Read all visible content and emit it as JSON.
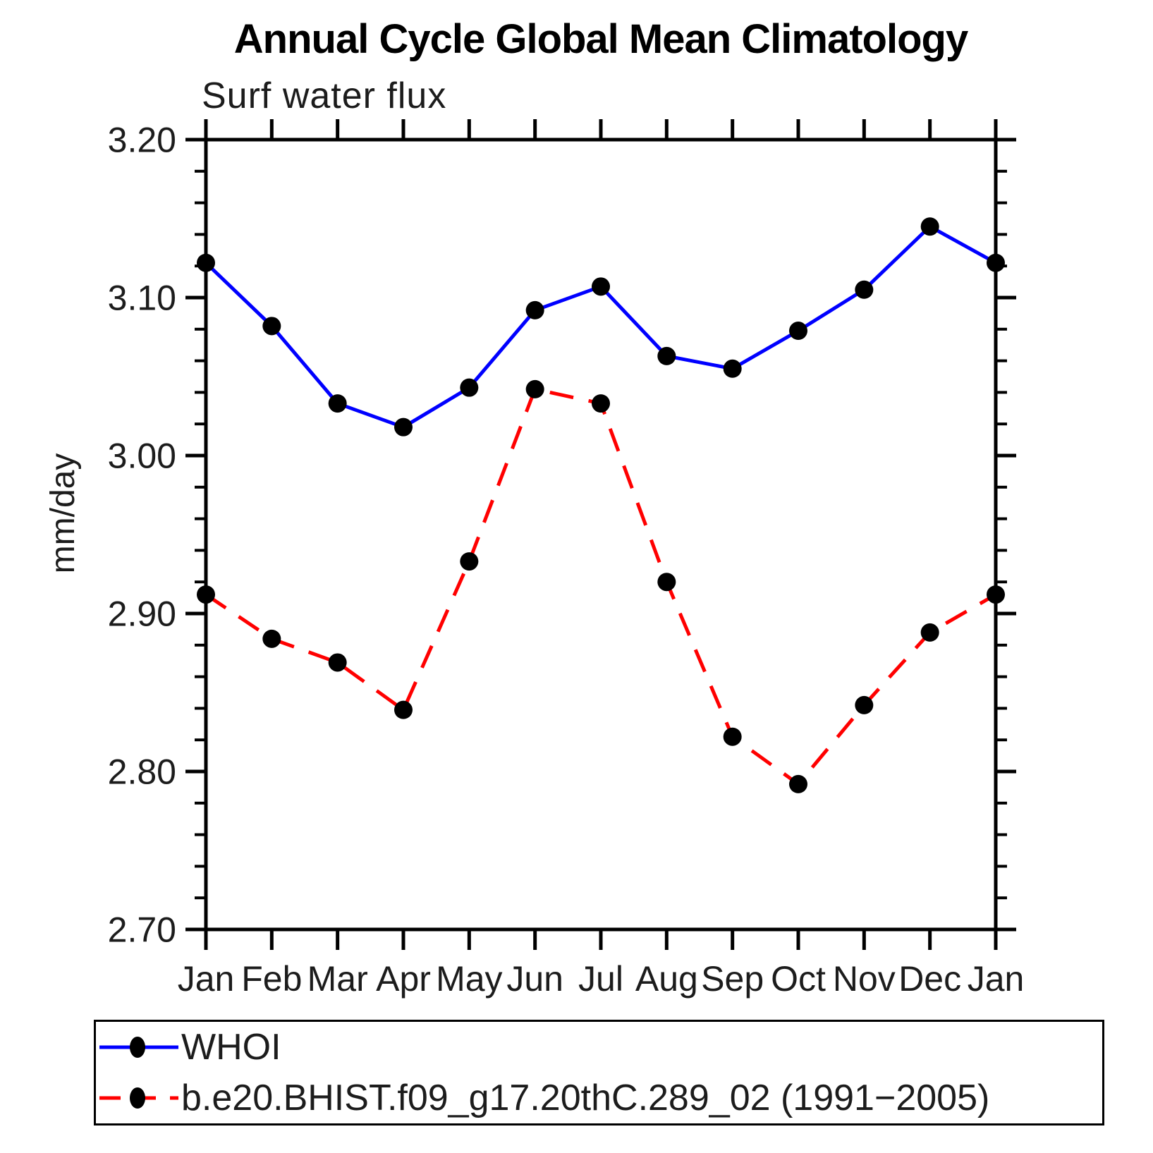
{
  "chart_data": {
    "type": "line",
    "title": "Annual Cycle Global Mean Climatology",
    "subtitle": "Surf water flux",
    "ylabel": "mm/day",
    "categories": [
      "Jan",
      "Feb",
      "Mar",
      "Apr",
      "May",
      "Jun",
      "Jul",
      "Aug",
      "Sep",
      "Oct",
      "Nov",
      "Dec",
      "Jan"
    ],
    "ylim": [
      2.7,
      3.2
    ],
    "ytick_values": [
      2.7,
      2.8,
      2.9,
      3.0,
      3.1,
      3.2
    ],
    "ytick_labels": [
      "2.70",
      "2.80",
      "2.90",
      "3.00",
      "3.10",
      "3.20"
    ],
    "yminor_step": 0.02,
    "grid": false,
    "legend_position": "bottom-left-box",
    "marker_color": "#000000",
    "axis_color": "#000000",
    "series": [
      {
        "name": "WHOI",
        "color": "#0000ff",
        "line_style": "solid",
        "marker": "circle",
        "values": [
          3.122,
          3.082,
          3.033,
          3.018,
          3.043,
          3.092,
          3.107,
          3.063,
          3.055,
          3.079,
          3.105,
          3.145,
          3.122
        ]
      },
      {
        "name": "b.e20.BHIST.f09_g17.20thC.289_02 (1991−2005)",
        "color": "#ff0000",
        "line_style": "dashed",
        "marker": "circle",
        "values": [
          2.912,
          2.884,
          2.869,
          2.839,
          2.933,
          3.042,
          3.033,
          2.92,
          2.822,
          2.792,
          2.842,
          2.888,
          2.912
        ]
      }
    ]
  }
}
